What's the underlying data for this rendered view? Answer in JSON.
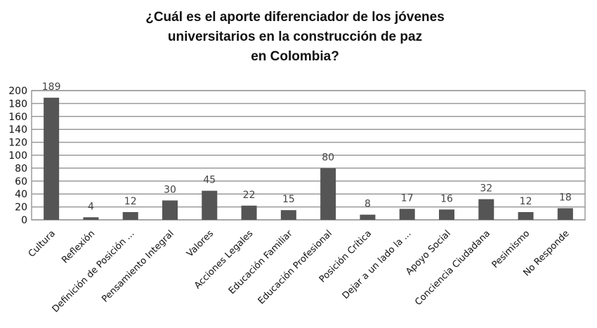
{
  "chart_data": {
    "type": "bar",
    "title_lines": [
      "¿Cuál es el aporte diferenciador de los jóvenes",
      "universitarios en la construcción de paz",
      "en Colombia?"
    ],
    "categories": [
      "Cultura",
      "Reflexión",
      "Definición de Posición ...",
      "Pensamiento Integral",
      "Valores",
      "Acciones Legales",
      "Educación Familiar",
      "Educación Profesional",
      "Posición Crítica",
      "Dejar a un lado la ...",
      "Apoyo Social",
      "Conciencia Ciudadana",
      "Pesimismo",
      "No Responde"
    ],
    "values": [
      189,
      4,
      12,
      30,
      45,
      22,
      15,
      80,
      8,
      17,
      16,
      32,
      12,
      18
    ],
    "data_labels": [
      "189",
      "4",
      "12",
      "30",
      "45",
      "22",
      "15",
      "80",
      "8",
      "17",
      "16",
      "32",
      "12",
      "18"
    ],
    "y_ticks": [
      0,
      20,
      40,
      60,
      80,
      100,
      120,
      140,
      160,
      180,
      200
    ],
    "ylim": [
      0,
      200
    ],
    "grid": true,
    "legend": "none",
    "bar_color": "#555555",
    "grid_color": "#9a9a9a"
  }
}
